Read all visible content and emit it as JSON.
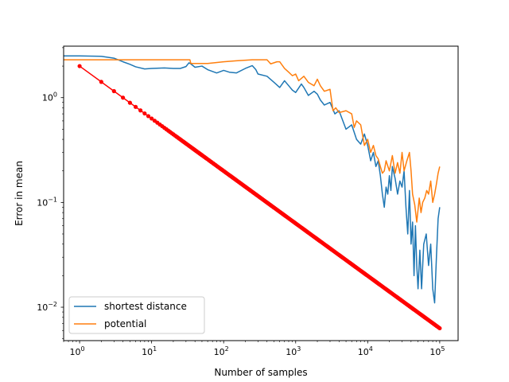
{
  "chart_data": {
    "type": "line",
    "xscale": "log",
    "yscale": "log",
    "xlabel": "Number of samples",
    "ylabel": "Error in mean",
    "xlim": [
      0.6,
      180000
    ],
    "ylim": [
      0.0048,
      3.1
    ],
    "x_ticks": [
      {
        "value": 1,
        "mant": "10",
        "exp": "0"
      },
      {
        "value": 10,
        "mant": "10",
        "exp": "1"
      },
      {
        "value": 100,
        "mant": "10",
        "exp": "2"
      },
      {
        "value": 1000,
        "mant": "10",
        "exp": "3"
      },
      {
        "value": 10000,
        "mant": "10",
        "exp": "4"
      },
      {
        "value": 100000,
        "mant": "10",
        "exp": "5"
      }
    ],
    "y_ticks": [
      {
        "value": 0.01,
        "mant": "10",
        "exp": "−2"
      },
      {
        "value": 0.1,
        "mant": "10",
        "exp": "−1"
      },
      {
        "value": 1,
        "mant": "10",
        "exp": "0"
      }
    ],
    "grid": false,
    "legend_position": "lower-left",
    "series": [
      {
        "name": "shortest distance",
        "color": "#1f77b4",
        "points": [
          [
            0.6,
            2.5
          ],
          [
            1,
            2.5
          ],
          [
            2,
            2.48
          ],
          [
            3,
            2.38
          ],
          [
            4,
            2.2
          ],
          [
            5,
            2.08
          ],
          [
            6,
            1.97
          ],
          [
            8,
            1.88
          ],
          [
            10,
            1.9
          ],
          [
            15,
            1.92
          ],
          [
            20,
            1.9
          ],
          [
            25,
            1.9
          ],
          [
            30,
            1.98
          ],
          [
            33,
            2.15
          ],
          [
            35,
            2.1
          ],
          [
            40,
            1.95
          ],
          [
            50,
            2.0
          ],
          [
            60,
            1.85
          ],
          [
            80,
            1.72
          ],
          [
            100,
            1.82
          ],
          [
            120,
            1.75
          ],
          [
            150,
            1.72
          ],
          [
            200,
            1.9
          ],
          [
            250,
            2.02
          ],
          [
            280,
            1.85
          ],
          [
            300,
            1.68
          ],
          [
            400,
            1.6
          ],
          [
            500,
            1.4
          ],
          [
            600,
            1.25
          ],
          [
            700,
            1.45
          ],
          [
            800,
            1.3
          ],
          [
            900,
            1.18
          ],
          [
            1000,
            1.12
          ],
          [
            1200,
            1.35
          ],
          [
            1300,
            1.25
          ],
          [
            1500,
            1.05
          ],
          [
            1800,
            1.15
          ],
          [
            2000,
            1.08
          ],
          [
            2200,
            0.95
          ],
          [
            2500,
            0.85
          ],
          [
            3000,
            0.9
          ],
          [
            3500,
            0.7
          ],
          [
            4000,
            0.75
          ],
          [
            5000,
            0.5
          ],
          [
            6000,
            0.55
          ],
          [
            7000,
            0.4
          ],
          [
            8000,
            0.36
          ],
          [
            9000,
            0.45
          ],
          [
            10000,
            0.35
          ],
          [
            11000,
            0.25
          ],
          [
            12000,
            0.3
          ],
          [
            13000,
            0.22
          ],
          [
            14000,
            0.25
          ],
          [
            15000,
            0.18
          ],
          [
            16000,
            0.12
          ],
          [
            17000,
            0.09
          ],
          [
            18000,
            0.14
          ],
          [
            19000,
            0.12
          ],
          [
            20000,
            0.18
          ],
          [
            21000,
            0.13
          ],
          [
            22000,
            0.22
          ],
          [
            24000,
            0.17
          ],
          [
            26000,
            0.12
          ],
          [
            28000,
            0.16
          ],
          [
            30000,
            0.14
          ],
          [
            32000,
            0.2
          ],
          [
            34000,
            0.09
          ],
          [
            36000,
            0.05
          ],
          [
            38000,
            0.13
          ],
          [
            40000,
            0.04
          ],
          [
            42000,
            0.065
          ],
          [
            44000,
            0.02
          ],
          [
            46000,
            0.06
          ],
          [
            48000,
            0.025
          ],
          [
            50000,
            0.015
          ],
          [
            53000,
            0.035
          ],
          [
            56000,
            0.015
          ],
          [
            60000,
            0.04
          ],
          [
            65000,
            0.05
          ],
          [
            70000,
            0.025
          ],
          [
            75000,
            0.04
          ],
          [
            80000,
            0.015
          ],
          [
            85000,
            0.011
          ],
          [
            90000,
            0.03
          ],
          [
            95000,
            0.07
          ],
          [
            100000,
            0.09
          ]
        ]
      },
      {
        "name": "potential",
        "color": "#ff7f0e",
        "points": [
          [
            0.6,
            2.3
          ],
          [
            5,
            2.3
          ],
          [
            10,
            2.3
          ],
          [
            20,
            2.3
          ],
          [
            34,
            2.3
          ],
          [
            35,
            2.12
          ],
          [
            60,
            2.12
          ],
          [
            100,
            2.2
          ],
          [
            150,
            2.25
          ],
          [
            250,
            2.3
          ],
          [
            400,
            2.3
          ],
          [
            450,
            2.1
          ],
          [
            550,
            2.2
          ],
          [
            600,
            2.2
          ],
          [
            700,
            1.9
          ],
          [
            800,
            1.75
          ],
          [
            900,
            1.62
          ],
          [
            1000,
            1.68
          ],
          [
            1100,
            1.45
          ],
          [
            1300,
            1.6
          ],
          [
            1500,
            1.4
          ],
          [
            1800,
            1.3
          ],
          [
            2000,
            1.5
          ],
          [
            2200,
            1.3
          ],
          [
            2500,
            1.15
          ],
          [
            3000,
            1.2
          ],
          [
            3300,
            0.75
          ],
          [
            3600,
            0.8
          ],
          [
            4000,
            0.72
          ],
          [
            5000,
            0.75
          ],
          [
            6000,
            0.7
          ],
          [
            6500,
            0.52
          ],
          [
            7000,
            0.6
          ],
          [
            8000,
            0.55
          ],
          [
            9000,
            0.35
          ],
          [
            10000,
            0.4
          ],
          [
            11000,
            0.3
          ],
          [
            12000,
            0.35
          ],
          [
            13000,
            0.28
          ],
          [
            14000,
            0.26
          ],
          [
            15000,
            0.22
          ],
          [
            16000,
            0.19
          ],
          [
            17000,
            0.2
          ],
          [
            18000,
            0.25
          ],
          [
            20000,
            0.2
          ],
          [
            22000,
            0.28
          ],
          [
            24000,
            0.19
          ],
          [
            26000,
            0.24
          ],
          [
            28000,
            0.19
          ],
          [
            30000,
            0.3
          ],
          [
            32000,
            0.2
          ],
          [
            35000,
            0.25
          ],
          [
            38000,
            0.3
          ],
          [
            40000,
            0.2
          ],
          [
            42000,
            0.12
          ],
          [
            45000,
            0.095
          ],
          [
            48000,
            0.065
          ],
          [
            52000,
            0.11
          ],
          [
            55000,
            0.08
          ],
          [
            58000,
            0.1
          ],
          [
            62000,
            0.11
          ],
          [
            66000,
            0.13
          ],
          [
            70000,
            0.12
          ],
          [
            75000,
            0.16
          ],
          [
            80000,
            0.1
          ],
          [
            85000,
            0.12
          ],
          [
            90000,
            0.15
          ],
          [
            95000,
            0.19
          ],
          [
            100000,
            0.22
          ]
        ]
      },
      {
        "name": "",
        "color": "#ff0000",
        "points": [
          [
            1,
            2.0
          ],
          [
            100000,
            0.0063
          ]
        ],
        "style": "power-law line with dot markers at every integer sample count"
      }
    ]
  }
}
